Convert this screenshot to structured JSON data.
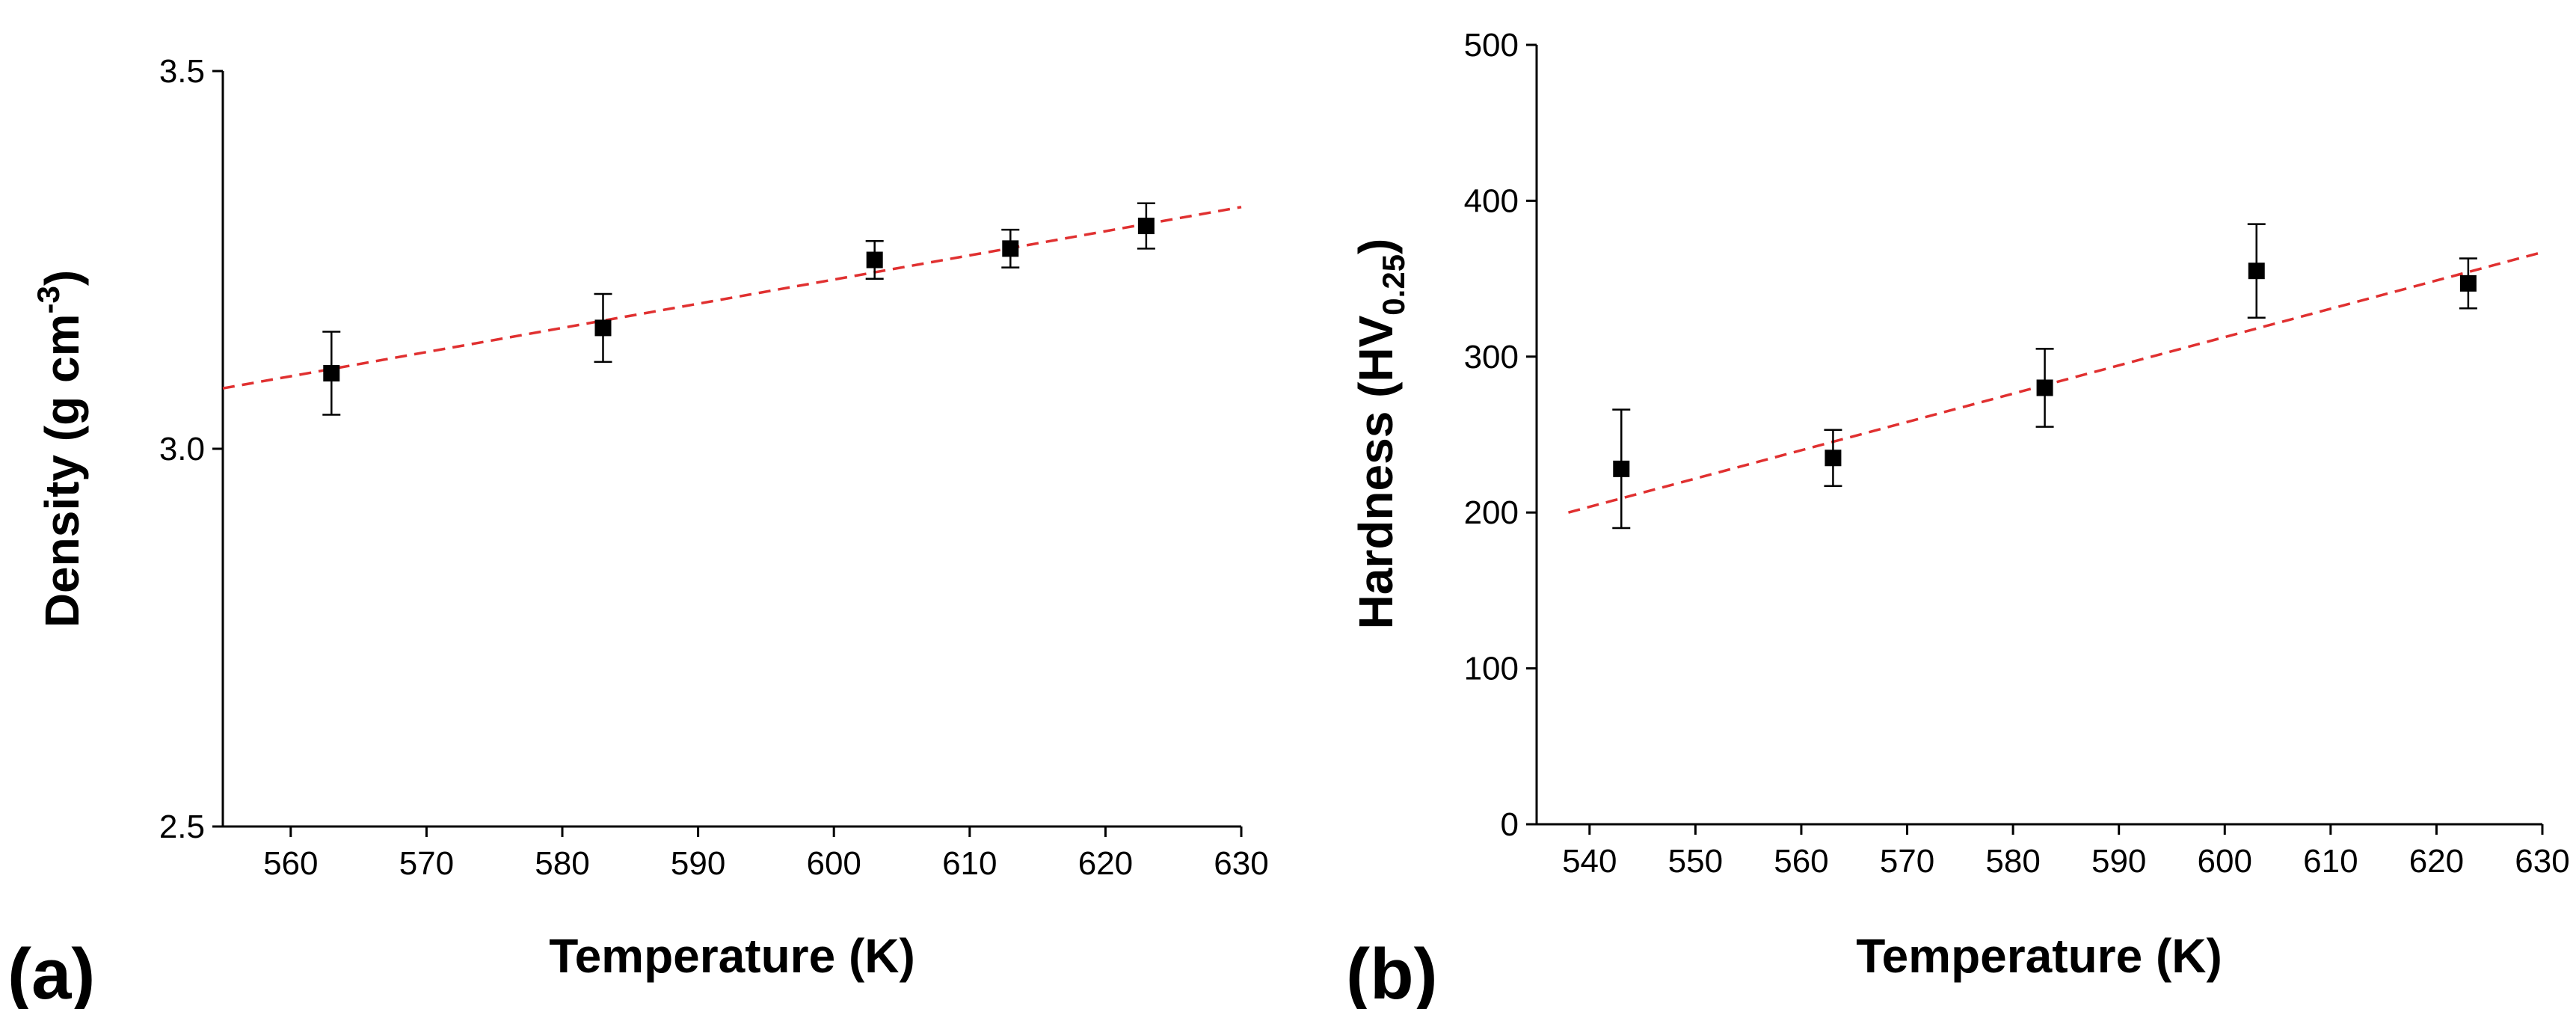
{
  "chart_data": [
    {
      "type": "scatter",
      "panel_label": "(a)",
      "xlabel": "Temperature (K)",
      "ylabel": {
        "main": "Density (g cm",
        "superscript": "-3",
        "close": ")"
      },
      "xlim": [
        555,
        630
      ],
      "ylim": [
        2.5,
        3.5
      ],
      "xticks": [
        560,
        570,
        580,
        590,
        600,
        610,
        620,
        630
      ],
      "yticks": [
        2.5,
        3.0,
        3.5
      ],
      "ytick_labels": [
        "2.5",
        "3.0",
        "3.5"
      ],
      "series": [
        {
          "name": "Density",
          "x": [
            563,
            583,
            603,
            613,
            623
          ],
          "y": [
            3.1,
            3.16,
            3.25,
            3.265,
            3.295
          ],
          "yerr": [
            0.055,
            0.045,
            0.025,
            0.025,
            0.03
          ]
        }
      ],
      "fit_line": {
        "x": [
          555,
          630
        ],
        "y": [
          3.08,
          3.32
        ],
        "color": "#e03030",
        "style": "dashed"
      },
      "marker_color": "#000000"
    },
    {
      "type": "scatter",
      "panel_label": "(b)",
      "xlabel": "Temperature (K)",
      "ylabel": {
        "main": "Hardness (HV",
        "subscript": "0.25",
        "close": ")"
      },
      "xlim": [
        535,
        630
      ],
      "ylim": [
        0,
        500
      ],
      "xticks": [
        540,
        550,
        560,
        570,
        580,
        590,
        600,
        610,
        620,
        630
      ],
      "yticks": [
        0,
        100,
        200,
        300,
        400,
        500
      ],
      "ytick_labels": [
        "0",
        "100",
        "200",
        "300",
        "400",
        "500"
      ],
      "series": [
        {
          "name": "Hardness",
          "x": [
            543,
            563,
            583,
            603,
            623
          ],
          "y": [
            228,
            235,
            280,
            355,
            347
          ],
          "yerr": [
            38,
            18,
            25,
            30,
            16
          ]
        }
      ],
      "fit_line": {
        "x": [
          538,
          630
        ],
        "y": [
          200,
          367
        ],
        "color": "#e03030",
        "style": "dashed"
      },
      "marker_color": "#000000"
    }
  ]
}
